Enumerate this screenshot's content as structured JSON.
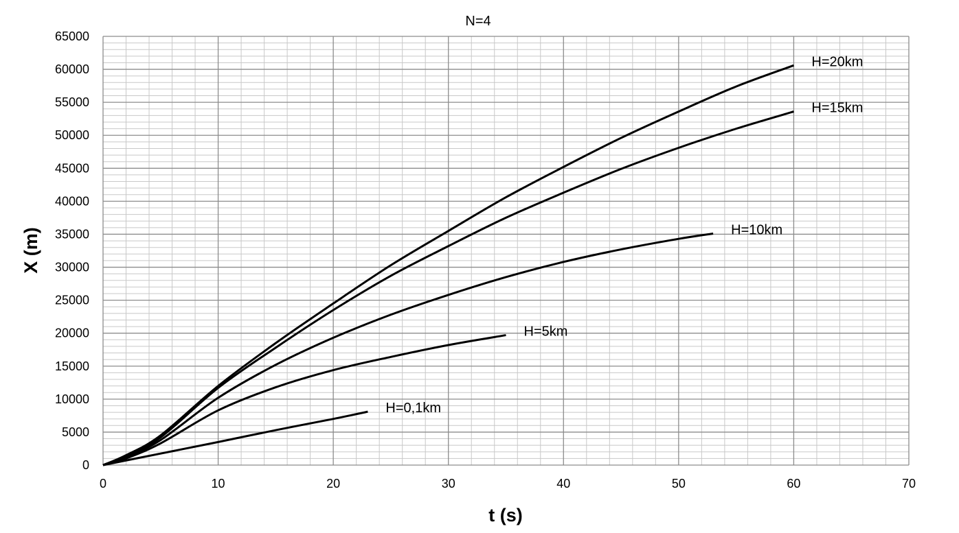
{
  "chart_data": {
    "type": "line",
    "title": "N=4",
    "xlabel": "t (s)",
    "ylabel": "X (m)",
    "xlim": [
      0,
      70
    ],
    "ylim": [
      0,
      65000
    ],
    "xticks": [
      "0",
      "10",
      "20",
      "30",
      "40",
      "50",
      "60",
      "70"
    ],
    "yticks": [
      "0",
      "5000",
      "10000",
      "15000",
      "20000",
      "25000",
      "30000",
      "35000",
      "40000",
      "45000",
      "50000",
      "55000",
      "60000",
      "65000"
    ],
    "grid": true,
    "colors": {
      "line": "#000000",
      "major_grid": "#8c8c8c",
      "minor_grid": "#c8c8c8"
    },
    "series": [
      {
        "name": "H=20km",
        "x": [
          0,
          2,
          5,
          10,
          15,
          20,
          25,
          30,
          35,
          40,
          45,
          50,
          55,
          60
        ],
        "y": [
          0,
          1500,
          4500,
          12000,
          18500,
          24500,
          30300,
          35500,
          40600,
          45200,
          49600,
          53600,
          57400,
          60600
        ]
      },
      {
        "name": "H=15km",
        "x": [
          0,
          2,
          5,
          10,
          15,
          20,
          25,
          30,
          35,
          40,
          45,
          50,
          55,
          60
        ],
        "y": [
          0,
          1400,
          4200,
          11700,
          17800,
          23500,
          28700,
          33200,
          37500,
          41300,
          44900,
          48100,
          51000,
          53600
        ]
      },
      {
        "name": "H=10km",
        "x": [
          0,
          2,
          5,
          10,
          15,
          20,
          25,
          30,
          35,
          40,
          45,
          50,
          53
        ],
        "y": [
          0,
          1200,
          3800,
          10200,
          15200,
          19300,
          22800,
          25800,
          28500,
          30800,
          32700,
          34300,
          35100
        ]
      },
      {
        "name": "H=5km",
        "x": [
          0,
          2,
          5,
          10,
          15,
          20,
          25,
          30,
          35
        ],
        "y": [
          0,
          1000,
          3300,
          8300,
          11800,
          14400,
          16400,
          18200,
          19700
        ]
      },
      {
        "name": "H=0,1km",
        "x": [
          0,
          5,
          10,
          15,
          20,
          23
        ],
        "y": [
          0,
          1750,
          3500,
          5300,
          7000,
          8100
        ]
      }
    ]
  }
}
